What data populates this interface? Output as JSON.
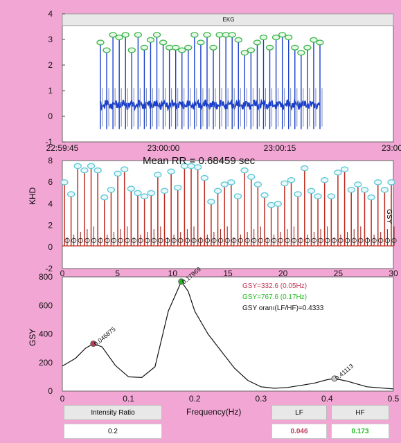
{
  "ekg": {
    "title": "EKG",
    "yticks": [
      "4",
      "3",
      "2",
      "1",
      "0",
      "-1"
    ],
    "xticks": [
      "22:59:45",
      "23:00:00",
      "23:00:15",
      "23:00"
    ]
  },
  "rr": {
    "mean_label": "Mean RR =  0.68459  sec",
    "ylabel": "KHD",
    "right_label": "GSY",
    "yticks": [
      "8",
      "6",
      "4",
      "2",
      "0",
      "-2"
    ],
    "xticks": [
      "0",
      "5",
      "10",
      "15",
      "20",
      "25",
      "30"
    ]
  },
  "spectrum": {
    "ylabel": "GSY",
    "xlabel": "Frequency(Hz)",
    "yticks": [
      "800",
      "600",
      "400",
      "200",
      "0"
    ],
    "xticks": [
      "0",
      "0.1",
      "0.2",
      "0.3",
      "0.4",
      "0.5"
    ],
    "legend": [
      {
        "text": "GSY=332.6  (0.05Hz)",
        "color": "#c0395a"
      },
      {
        "text": "GSY=767.6  (0.17Hz)",
        "color": "#22bb22"
      },
      {
        "text": "GSY oranı(LF/HF)=0.4333",
        "color": "#111111"
      }
    ],
    "peak_labels": [
      "0.046875",
      "0.17969",
      "0.41113"
    ]
  },
  "bottom": {
    "intensity_header": "Intensity Ratio",
    "intensity_value": "0.2",
    "lf_header": "LF",
    "lf_value": "0.046",
    "hf_header": "HF",
    "hf_value": "0.173"
  },
  "colors": {
    "background": "#f2a6d4",
    "ekg_trace": "#1a3fcc",
    "ekg_marker": "#3ab54a",
    "rr_trace": "#c0281e",
    "rr_marker": "#5ac6d6",
    "lf_value": "#c0395a",
    "hf_value": "#22bb22"
  },
  "chart_data": [
    {
      "type": "line",
      "title": "EKG",
      "xlabel": "",
      "ylabel": "",
      "ylim": [
        -1,
        4
      ],
      "x_ticks": [
        "22:59:45",
        "23:00:00",
        "23:00:15",
        "23:00"
      ],
      "series": [
        {
          "values": [
            [
              0,
              2.6,
              3.1,
              2.9,
              3.0,
              2.5,
              3.1,
              2.4,
              2.8,
              3.0,
              3.1,
              2.6,
              2.6,
              2.4,
              2.5,
              3.0,
              2.6,
              3.0,
              2.7,
              3.1,
              3.1,
              2.6,
              2.9,
              2.4,
              2.5,
              2.8,
              3.0,
              2.6,
              2.9,
              3.0,
              2.9,
              2.5,
              2.4,
              2.6,
              2.9
            ],
            [
              0.5,
              0.5,
              0.5,
              0.5
            ]
          ]
        }
      ],
      "r_peaks": [
        2.8,
        2.5,
        3.1,
        3.0,
        3.1,
        2.5,
        3.1,
        2.6,
        2.9,
        3.1,
        2.8,
        2.6,
        2.6,
        2.5,
        2.6,
        3.1,
        2.8,
        3.1,
        2.6,
        3.1,
        3.1,
        3.1,
        2.9,
        2.4,
        2.5,
        2.8,
        3.0,
        2.6,
        3.0,
        3.1,
        3.0,
        2.6,
        2.4,
        2.6,
        2.9,
        2.8
      ]
    },
    {
      "type": "line",
      "title": "Mean RR =  0.68459  sec",
      "ylabel": "KHD",
      "ylim": [
        -2,
        8
      ],
      "xlim": [
        0,
        30
      ],
      "series": [
        {
          "peaks": [
            5.8,
            4.7,
            7.3,
            6.9,
            7.3,
            6.9,
            4.4,
            5.1,
            6.6,
            7.0,
            5.2,
            4.8,
            4.5,
            4.8,
            6.5,
            5.0,
            6.8,
            5.3,
            7.3,
            7.3,
            7.2,
            6.2,
            4.0,
            5.0,
            5.6,
            5.8,
            4.5,
            6.9,
            6.3,
            5.6,
            4.6,
            3.7,
            3.8,
            5.7,
            6.0,
            4.7,
            7.1,
            5.0,
            4.5,
            6.0,
            4.5,
            6.7,
            7.0,
            5.1,
            5.6,
            5.1,
            4.4,
            5.8,
            5.1,
            5.8
          ]
        },
        {
          "baseline": 0.6
        }
      ]
    },
    {
      "type": "line",
      "ylabel": "GSY",
      "xlabel": "Frequency(Hz)",
      "ylim": [
        0,
        800
      ],
      "xlim": [
        0,
        0.5
      ],
      "x": [
        0,
        0.02,
        0.035,
        0.046875,
        0.06,
        0.08,
        0.1,
        0.12,
        0.14,
        0.16,
        0.17969,
        0.19,
        0.2,
        0.22,
        0.24,
        0.26,
        0.28,
        0.3,
        0.32,
        0.34,
        0.36,
        0.38,
        0.4,
        0.41113,
        0.43,
        0.46,
        0.5
      ],
      "series": [
        {
          "values": [
            175,
            230,
            300,
            332,
            310,
            180,
            100,
            95,
            170,
            560,
            767,
            700,
            560,
            400,
            280,
            160,
            75,
            30,
            20,
            25,
            40,
            55,
            80,
            88,
            70,
            30,
            15
          ]
        }
      ],
      "markers": [
        {
          "x": 0.046875,
          "y": 332,
          "label": "0.046875"
        },
        {
          "x": 0.17969,
          "y": 767,
          "label": "0.17969"
        },
        {
          "x": 0.41113,
          "y": 88,
          "label": "0.41113"
        }
      ]
    }
  ]
}
